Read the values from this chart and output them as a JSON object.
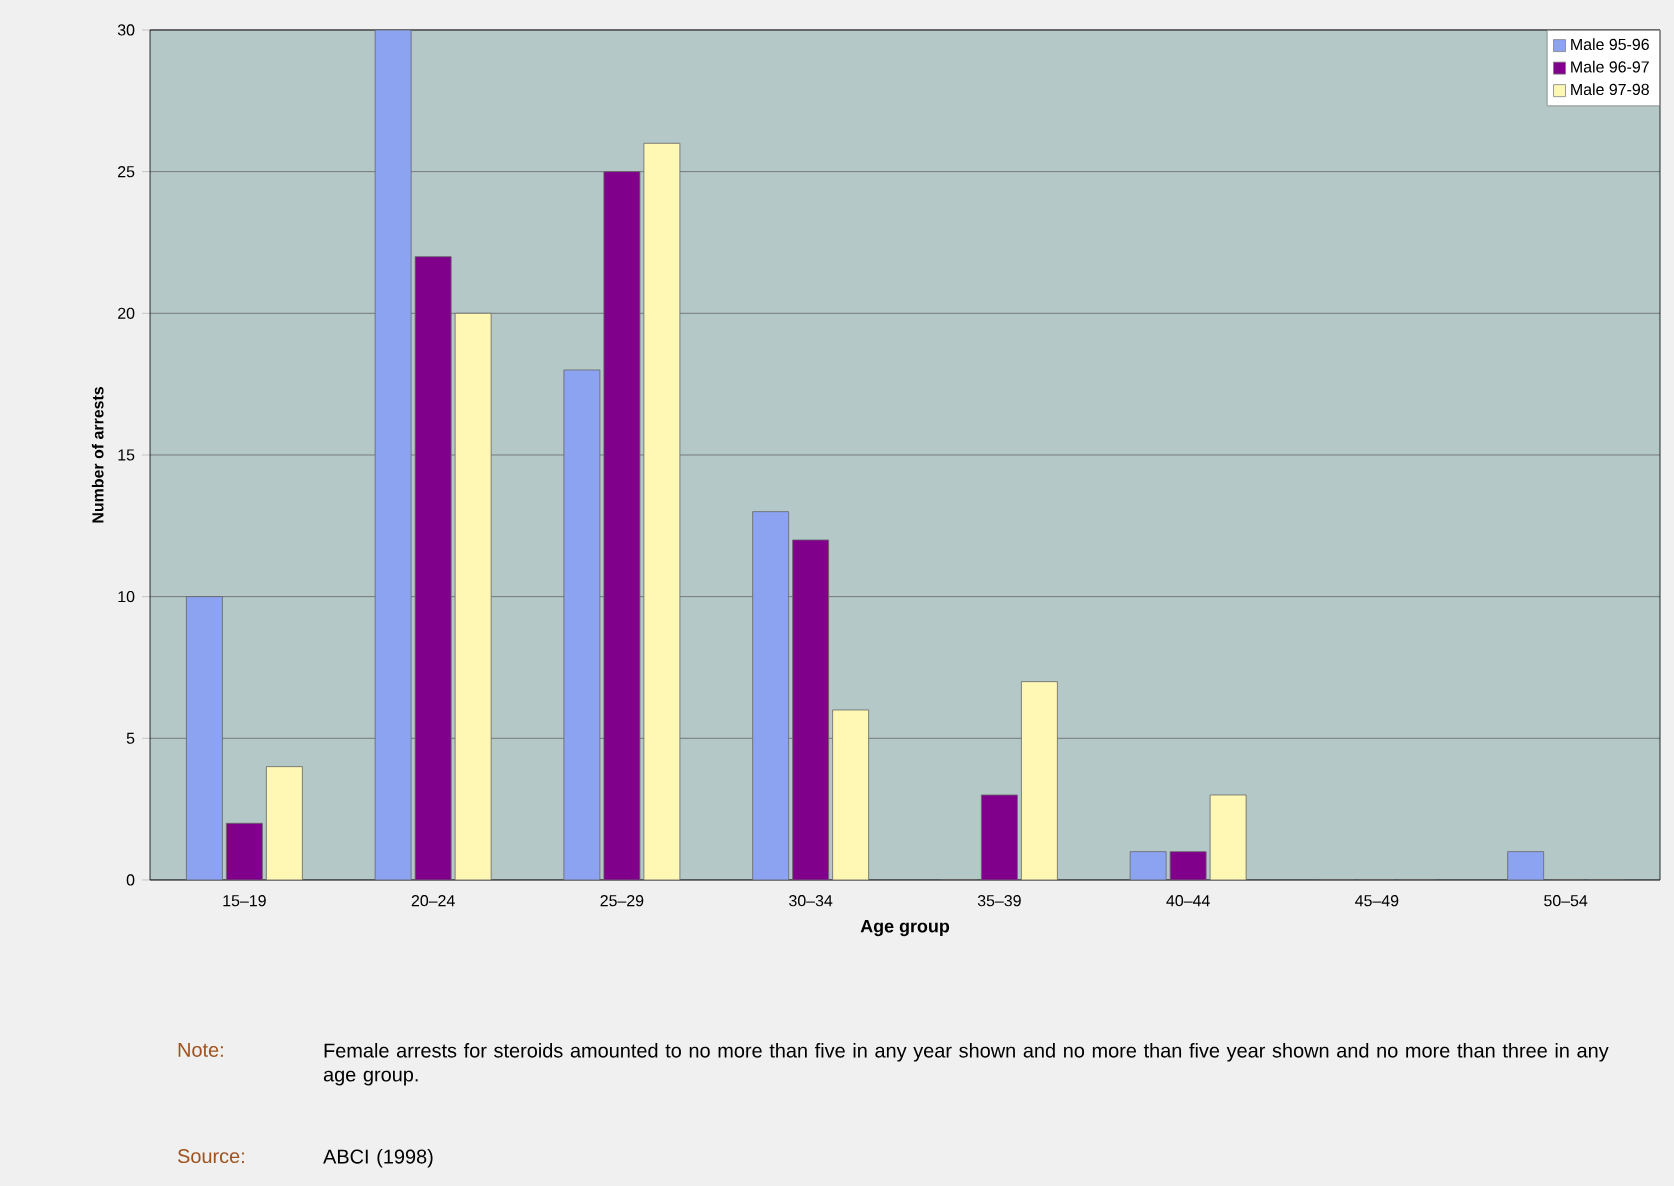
{
  "chart_data": {
    "type": "bar",
    "xlabel": "Age group",
    "ylabel": "Number of arrests",
    "categories": [
      "15–19",
      "20–24",
      "25–29",
      "30–34",
      "35–39",
      "40–44",
      "45–49",
      "50–54"
    ],
    "series": [
      {
        "name": "Male  95-96",
        "color": "#8ca3f2",
        "values": [
          10,
          30,
          18,
          13,
          0,
          1,
          0,
          1
        ]
      },
      {
        "name": "Male  96-97",
        "color": "#80008c",
        "values": [
          2,
          22,
          25,
          12,
          3,
          1,
          0,
          0
        ]
      },
      {
        "name": "Male  97-98",
        "color": "#fff7b4",
        "values": [
          4,
          20,
          26,
          6,
          7,
          3,
          0,
          0
        ]
      }
    ],
    "ylim": [
      0,
      30
    ],
    "yticks": [
      0,
      5,
      10,
      15,
      20,
      25,
      30
    ],
    "grid": "y",
    "legend": "top right",
    "annotations": [
      "Note:",
      "Female arrests for steroids amounted to no more than five in any year shown and no more than five year shown and no more than three in any age group.",
      "Source:",
      "ABCI (1998)"
    ]
  }
}
